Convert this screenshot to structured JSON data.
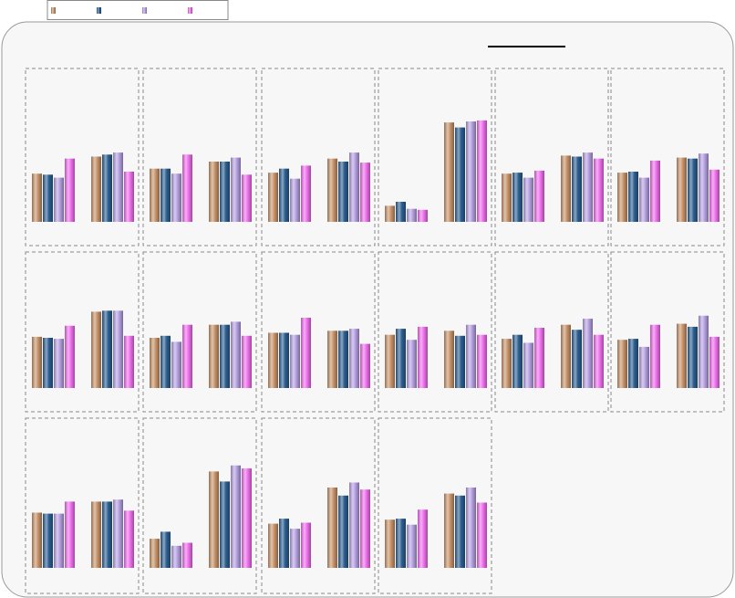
{
  "chart_data": {
    "type": "bar",
    "title": "",
    "legend": {
      "placement": "top-left",
      "entries": [
        {
          "name": "",
          "color": "#c8946a"
        },
        {
          "name": "",
          "color": "#2c5f91"
        },
        {
          "name": "",
          "color": "#b6a0e2"
        },
        {
          "name": "",
          "color": "#f070ee"
        }
      ]
    },
    "series_colors": [
      "#c8946a",
      "#2c5f91",
      "#b6a0e2",
      "#f070ee"
    ],
    "grid": false,
    "ylim": [
      0,
      100
    ],
    "panels": [
      {
        "groups": [
          [
            48,
            47,
            44,
            63
          ],
          [
            65,
            67,
            69,
            50
          ]
        ]
      },
      {
        "groups": [
          [
            53,
            53,
            48,
            67
          ],
          [
            60,
            60,
            64,
            47
          ]
        ]
      },
      {
        "groups": [
          [
            49,
            53,
            43,
            56
          ],
          [
            63,
            60,
            69,
            59
          ]
        ]
      },
      {
        "groups": [
          [
            16,
            20,
            13,
            12
          ],
          [
            99,
            94,
            100,
            101
          ]
        ]
      },
      {
        "groups": [
          [
            48,
            49,
            44,
            51
          ],
          [
            66,
            65,
            69,
            63
          ]
        ]
      },
      {
        "groups": [
          [
            49,
            50,
            44,
            61
          ],
          [
            64,
            63,
            68,
            52
          ]
        ]
      },
      {
        "groups": [
          [
            51,
            50,
            49,
            62
          ],
          [
            76,
            77,
            77,
            52
          ]
        ]
      },
      {
        "groups": [
          [
            50,
            52,
            46,
            63
          ],
          [
            63,
            63,
            66,
            52
          ]
        ]
      },
      {
        "groups": [
          [
            55,
            55,
            53,
            70
          ],
          [
            57,
            57,
            59,
            44
          ]
        ]
      },
      {
        "groups": [
          [
            53,
            59,
            48,
            61
          ],
          [
            57,
            52,
            63,
            53
          ]
        ]
      },
      {
        "groups": [
          [
            49,
            53,
            45,
            60
          ],
          [
            63,
            58,
            69,
            53
          ]
        ]
      },
      {
        "groups": [
          [
            48,
            49,
            41,
            63
          ],
          [
            64,
            61,
            72,
            51
          ]
        ]
      },
      {
        "groups": [
          [
            55,
            54,
            54,
            66
          ],
          [
            66,
            66,
            68,
            57
          ]
        ]
      },
      {
        "groups": [
          [
            29,
            36,
            22,
            25
          ],
          [
            96,
            86,
            102,
            99
          ]
        ]
      },
      {
        "groups": [
          [
            44,
            49,
            39,
            45
          ],
          [
            80,
            72,
            85,
            78
          ]
        ]
      },
      {
        "groups": [
          [
            48,
            49,
            43,
            58
          ],
          [
            74,
            72,
            80,
            65
          ]
        ]
      }
    ]
  }
}
